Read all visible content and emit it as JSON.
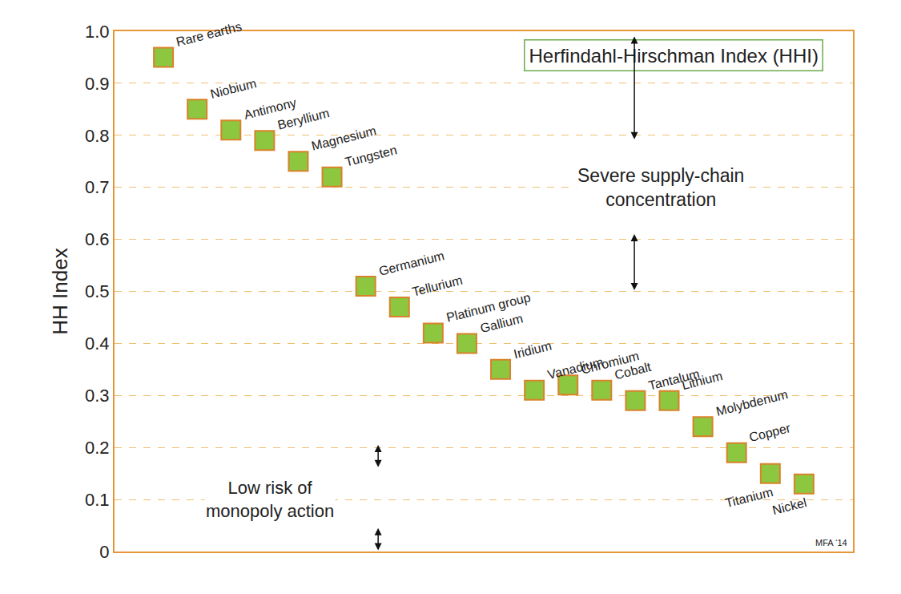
{
  "chart_data": {
    "type": "scatter",
    "title": "Herfindahl-Hirschman Index (HHI)",
    "y_label": "HH Index",
    "categories": [
      "Rare earths",
      "Niobium",
      "Antimony",
      "Beryllium",
      "Magnesium",
      "Tungsten",
      "Germanium",
      "Tellurium",
      "Platinum group",
      "Gallium",
      "Iridium",
      "Vanadium",
      "Chromium",
      "Cobalt",
      "Tantalum",
      "Lithium",
      "Molybdenum",
      "Copper",
      "Titanium",
      "Nickel"
    ],
    "values": [
      0.95,
      0.85,
      0.81,
      0.79,
      0.75,
      0.72,
      0.51,
      0.47,
      0.42,
      0.4,
      0.35,
      0.31,
      0.32,
      0.31,
      0.29,
      0.29,
      0.24,
      0.19,
      0.15,
      0.13
    ],
    "color": "#8dc63f",
    "marker": "square",
    "ylim": [
      0,
      1
    ],
    "yticks": [
      0,
      0.1,
      0.2,
      0.3,
      0.4,
      0.5,
      0.6,
      0.7,
      0.8,
      0.9,
      {
        "value": 1,
        "label": "1.0"
      }
    ],
    "grid": true,
    "tick_labels": "y",
    "annotations": [
      {
        "text": "Severe supply-chain\nconcentration"
      },
      {
        "text": "Low risk of\nmonopoly action"
      },
      {
        "text": "MFA ‘14"
      }
    ]
  }
}
